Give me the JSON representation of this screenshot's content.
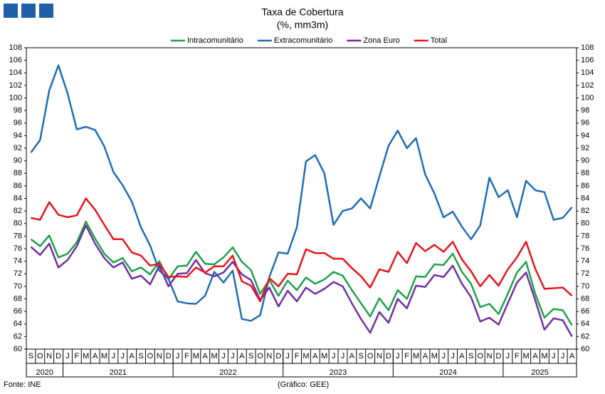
{
  "chart_data": {
    "type": "line",
    "title": "Taxa de Cobertura",
    "subtitle": "(%, mm3m)",
    "categories": [
      "S",
      "O",
      "N",
      "D",
      "J",
      "F",
      "M",
      "A",
      "M",
      "J",
      "J",
      "A",
      "S",
      "O",
      "N",
      "D",
      "J",
      "F",
      "M",
      "A",
      "M",
      "J",
      "J",
      "A",
      "S",
      "O",
      "N",
      "D",
      "J",
      "F",
      "M",
      "A",
      "M",
      "J",
      "J",
      "A",
      "S",
      "O",
      "N",
      "D",
      "J",
      "F",
      "M",
      "A",
      "M",
      "J",
      "J",
      "A",
      "S",
      "O",
      "N",
      "D",
      "J",
      "F",
      "M",
      "A",
      "M",
      "J",
      "J",
      "A"
    ],
    "year_labels": [
      "2020",
      "2021",
      "2022",
      "2023",
      "2024",
      "2025"
    ],
    "series": [
      {
        "name": "Intracomunitário",
        "color": "#1fa04a",
        "values": [
          77.5,
          76.4,
          78.1,
          74.6,
          75.2,
          77.0,
          80.3,
          77.6,
          75.2,
          73.8,
          74.5,
          72.4,
          73.0,
          71.9,
          74.0,
          71.1,
          73.2,
          73.3,
          75.5,
          73.6,
          73.5,
          74.6,
          76.2,
          73.9,
          72.6,
          68.8,
          71.0,
          68.5,
          70.9,
          69.4,
          71.4,
          70.4,
          71.1,
          72.3,
          71.7,
          69.4,
          67.3,
          65.2,
          68.1,
          66.2,
          69.4,
          68.0,
          71.6,
          71.5,
          73.5,
          73.4,
          75.2,
          72.3,
          70.4,
          66.7,
          67.2,
          65.6,
          68.8,
          72.2,
          73.9,
          68.8,
          65.0,
          66.4,
          66.2,
          63.8
        ]
      },
      {
        "name": "Extracomunitário",
        "color": "#1f6db5",
        "values": [
          91.3,
          93.3,
          101.2,
          105.2,
          100.7,
          95.0,
          95.4,
          94.9,
          92.3,
          88.2,
          86.1,
          83.5,
          79.4,
          76.5,
          72.5,
          71.2,
          67.6,
          67.3,
          67.2,
          68.5,
          72.3,
          70.6,
          72.5,
          64.8,
          64.5,
          65.4,
          71.5,
          75.4,
          75.2,
          79.4,
          89.9,
          90.9,
          88.0,
          79.8,
          82.0,
          82.4,
          84.0,
          82.4,
          87.5,
          92.4,
          94.8,
          92.0,
          93.6,
          87.8,
          84.8,
          81.0,
          81.9,
          79.5,
          77.5,
          79.7,
          87.3,
          84.2,
          85.3,
          81.0,
          86.8,
          85.3,
          85.0,
          80.6,
          80.9,
          82.6
        ]
      },
      {
        "name": "Zona Euro",
        "color": "#7030a0",
        "values": [
          76.3,
          75.0,
          76.8,
          73.0,
          74.2,
          76.4,
          79.7,
          76.8,
          74.5,
          73.0,
          73.8,
          71.2,
          71.7,
          70.3,
          73.3,
          70.0,
          72.0,
          72.1,
          74.2,
          72.1,
          71.6,
          72.2,
          73.9,
          71.9,
          71.0,
          67.8,
          69.8,
          66.8,
          69.3,
          67.6,
          69.8,
          68.8,
          69.6,
          70.7,
          70.0,
          67.3,
          64.8,
          62.6,
          65.9,
          64.2,
          68.0,
          66.5,
          70.1,
          69.9,
          71.8,
          71.5,
          73.3,
          70.4,
          68.3,
          64.4,
          65.0,
          63.9,
          67.3,
          70.6,
          72.2,
          67.8,
          63.1,
          64.9,
          64.6,
          62.0
        ]
      },
      {
        "name": "Total",
        "color": "#e8141c",
        "values": [
          80.9,
          80.6,
          83.4,
          81.4,
          81.0,
          81.3,
          84.0,
          82.2,
          79.8,
          77.5,
          77.5,
          75.4,
          74.9,
          73.3,
          73.6,
          71.5,
          71.6,
          71.5,
          73.0,
          72.2,
          73.2,
          73.2,
          74.9,
          70.8,
          70.1,
          67.6,
          71.3,
          70.0,
          72.0,
          71.9,
          75.9,
          75.3,
          75.3,
          74.4,
          74.4,
          72.9,
          71.6,
          69.8,
          72.7,
          72.3,
          75.5,
          73.7,
          76.9,
          75.6,
          76.6,
          75.5,
          77.1,
          74.3,
          72.4,
          70.0,
          71.8,
          70.1,
          72.7,
          74.6,
          77.1,
          72.8,
          69.6,
          69.7,
          69.8,
          68.5
        ]
      }
    ],
    "ylim": [
      60,
      108
    ],
    "yticks": [
      60,
      62,
      64,
      66,
      68,
      70,
      72,
      74,
      76,
      78,
      80,
      82,
      84,
      86,
      88,
      90,
      92,
      94,
      96,
      98,
      100,
      102,
      104,
      106,
      108
    ],
    "grid": false,
    "source": "Fonte: INE",
    "credit": "(Gráfico: GEE)"
  }
}
